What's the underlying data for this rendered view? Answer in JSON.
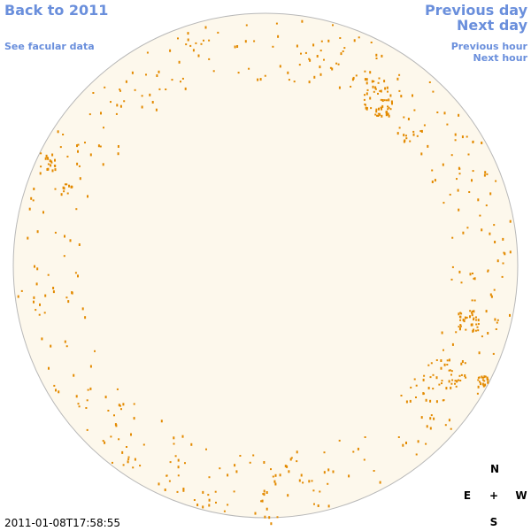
{
  "navigation": {
    "back_to_year": "Back to 2011",
    "see_facular_data": "See facular data",
    "previous_day": "Previous day",
    "next_day": "Next day",
    "previous_hour": "Previous hour",
    "next_hour": "Next hour"
  },
  "compass": {
    "north": "N",
    "east": "E",
    "center": "+",
    "west": "W",
    "south": "S"
  },
  "timestamp": "2011-01-08T17:58:55"
}
